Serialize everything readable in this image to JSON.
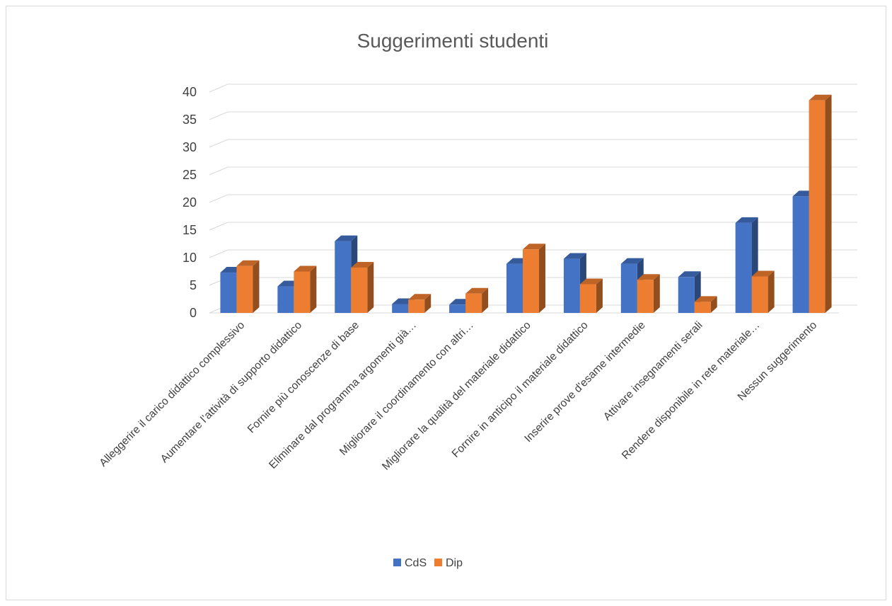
{
  "chart_data": {
    "type": "bar",
    "title": "Suggerimenti studenti",
    "xlabel": "",
    "ylabel": "",
    "ylim": [
      0,
      40
    ],
    "yticks": [
      0,
      5,
      10,
      15,
      20,
      25,
      30,
      35,
      40
    ],
    "grid": true,
    "legend_position": "bottom",
    "categories": [
      "Alleggerire il carico didattico complessivo",
      "Aumentare l’attività di supporto didattico",
      "Fornire più conoscenze di base",
      "Eliminare dal programma argomenti già…",
      "Migliorare il coordinamento con altri…",
      "Migliorare la qualità del materiale didattico",
      "Fornire in anticipo il materiale didattico",
      "Inserire prove d'esame intermedie",
      "Attivare insegnamenti serali",
      "Rendere disponibile in rete materiale…",
      "Nessun suggerimento"
    ],
    "series": [
      {
        "name": "CdS",
        "color": "#4472c4",
        "values": [
          7.3,
          4.8,
          13.0,
          1.6,
          1.5,
          8.9,
          9.8,
          8.9,
          6.5,
          16.3,
          21.1
        ]
      },
      {
        "name": "Dip",
        "color": "#ed7d31",
        "values": [
          8.5,
          7.5,
          8.2,
          2.4,
          3.5,
          11.5,
          5.2,
          6.0,
          2.0,
          6.6,
          38.5
        ]
      }
    ]
  }
}
